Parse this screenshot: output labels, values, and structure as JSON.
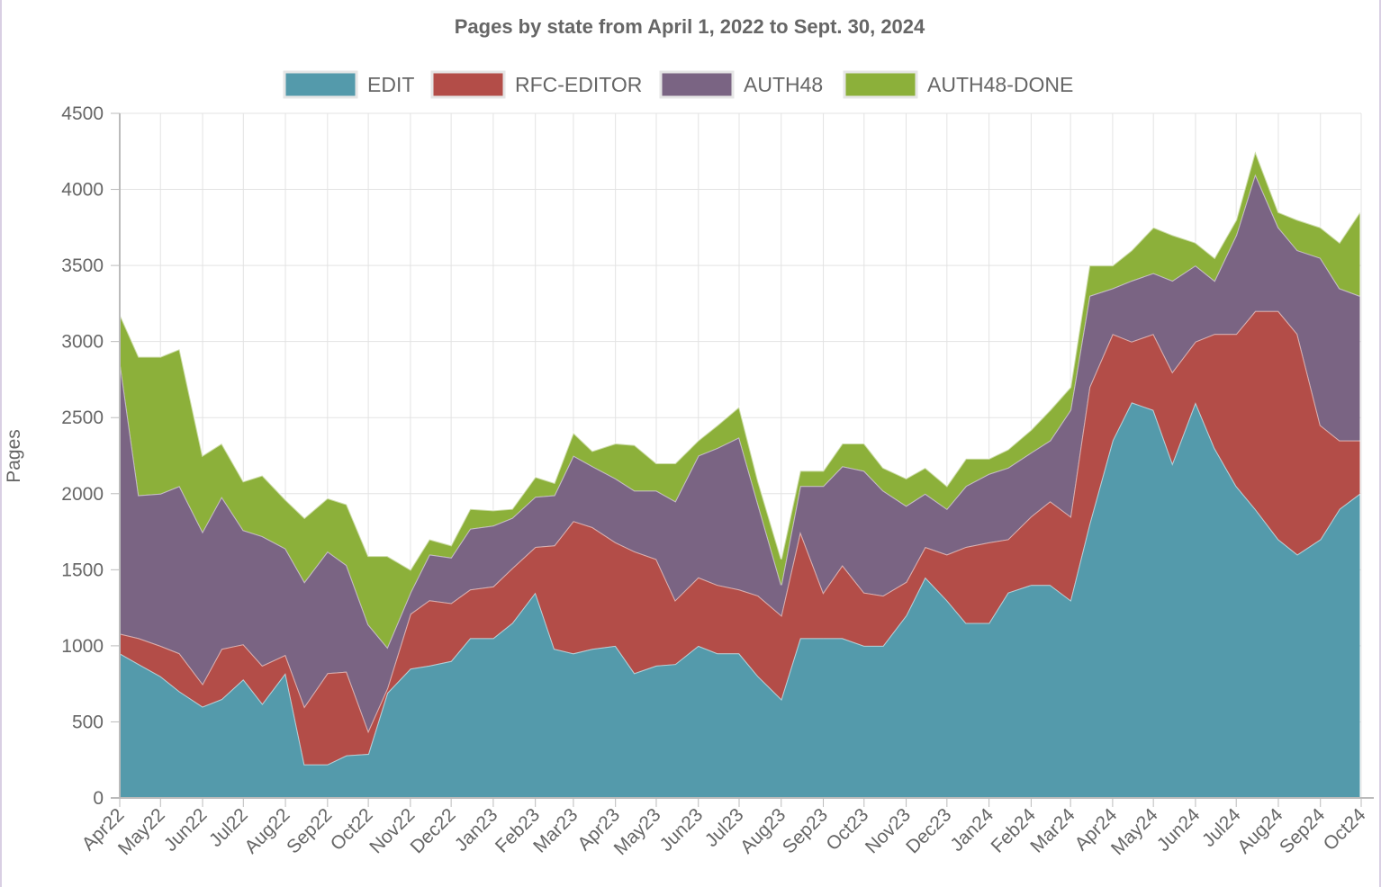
{
  "chart_data": {
    "type": "area",
    "stacked": true,
    "title": "Pages by state from April 1, 2022 to Sept. 30, 2024",
    "ylabel": "Pages",
    "xlabel": "",
    "ylim": [
      0,
      4500
    ],
    "yticks": [
      "0",
      "500",
      "1000",
      "1500",
      "2000",
      "2500",
      "3000",
      "3500",
      "4000",
      "4500"
    ],
    "yticks_values": [
      0,
      500,
      1000,
      1500,
      2000,
      2500,
      3000,
      3500,
      4000,
      4500
    ],
    "x_ticks": [
      "Apr22",
      "May22",
      "Jun22",
      "Jul22",
      "Aug22",
      "Sep22",
      "Oct22",
      "Nov22",
      "Dec22",
      "Jan23",
      "Feb23",
      "Mar23",
      "Apr23",
      "May23",
      "Jun23",
      "Jul23",
      "Aug23",
      "Sep23",
      "Oct23",
      "Nov23",
      "Dec23",
      "Jan24",
      "Feb24",
      "Mar24",
      "Apr24",
      "May24",
      "Jun24",
      "Jul24",
      "Aug24",
      "Sep24",
      "Oct24"
    ],
    "legend_position": "top",
    "grid": true,
    "colors": {
      "EDIT": "#549aab",
      "RFC-EDITOR": "#b34d48",
      "AUTH48": "#7a6483",
      "AUTH48-DONE": "#8cb03a"
    },
    "x": [
      "2022-04-01",
      "2022-04-15",
      "2022-05-01",
      "2022-05-15",
      "2022-06-01",
      "2022-06-15",
      "2022-07-01",
      "2022-07-15",
      "2022-08-01",
      "2022-08-15",
      "2022-09-01",
      "2022-09-15",
      "2022-10-01",
      "2022-10-15",
      "2022-11-01",
      "2022-11-15",
      "2022-12-01",
      "2022-12-15",
      "2023-01-01",
      "2023-01-15",
      "2023-02-01",
      "2023-02-15",
      "2023-03-01",
      "2023-03-15",
      "2023-04-01",
      "2023-04-15",
      "2023-05-01",
      "2023-05-15",
      "2023-06-01",
      "2023-06-15",
      "2023-07-01",
      "2023-07-15",
      "2023-08-01",
      "2023-08-15",
      "2023-09-01",
      "2023-09-15",
      "2023-10-01",
      "2023-10-15",
      "2023-11-01",
      "2023-11-15",
      "2023-12-01",
      "2023-12-15",
      "2024-01-01",
      "2024-01-15",
      "2024-02-01",
      "2024-02-15",
      "2024-03-01",
      "2024-03-15",
      "2024-04-01",
      "2024-04-15",
      "2024-05-01",
      "2024-05-15",
      "2024-06-01",
      "2024-06-15",
      "2024-07-01",
      "2024-07-15",
      "2024-08-01",
      "2024-08-15",
      "2024-09-01",
      "2024-09-15",
      "2024-09-30"
    ],
    "series": [
      {
        "name": "EDIT",
        "values": [
          950,
          880,
          800,
          700,
          600,
          650,
          780,
          620,
          820,
          220,
          220,
          280,
          290,
          690,
          850,
          870,
          900,
          1050,
          1050,
          1150,
          1350,
          980,
          950,
          980,
          1000,
          820,
          870,
          880,
          1000,
          950,
          950,
          800,
          650,
          1050,
          1050,
          1050,
          1000,
          1000,
          1200,
          1450,
          1300,
          1150,
          1150,
          1350,
          1400,
          1400,
          1300,
          1800,
          2350,
          2600,
          2550,
          2200,
          2600,
          2300,
          2050,
          1900,
          1700,
          1600,
          1700,
          1900,
          2000
        ]
      },
      {
        "name": "RFC-EDITOR",
        "values": [
          130,
          170,
          200,
          250,
          150,
          330,
          230,
          250,
          120,
          380,
          600,
          550,
          150,
          30,
          360,
          430,
          380,
          320,
          340,
          360,
          300,
          680,
          870,
          800,
          680,
          800,
          700,
          420,
          450,
          450,
          420,
          530,
          550,
          700,
          300,
          480,
          350,
          330,
          220,
          200,
          300,
          500,
          530,
          350,
          450,
          550,
          550,
          900,
          700,
          400,
          500,
          600,
          400,
          750,
          1000,
          1300,
          1500,
          1450,
          750,
          450,
          350
        ]
      },
      {
        "name": "AUTH48",
        "values": [
          1800,
          940,
          1000,
          1100,
          1000,
          1000,
          750,
          850,
          700,
          820,
          800,
          700,
          700,
          270,
          140,
          300,
          300,
          400,
          400,
          330,
          330,
          330,
          430,
          400,
          420,
          400,
          450,
          650,
          800,
          900,
          1000,
          600,
          200,
          300,
          700,
          650,
          800,
          690,
          500,
          350,
          300,
          400,
          450,
          470,
          420,
          400,
          700,
          600,
          300,
          400,
          400,
          600,
          500,
          350,
          650,
          900,
          550,
          550,
          1100,
          1000,
          950
        ]
      },
      {
        "name": "AUTH48-DONE",
        "values": [
          300,
          910,
          900,
          900,
          500,
          350,
          320,
          400,
          320,
          420,
          350,
          400,
          450,
          600,
          150,
          100,
          80,
          130,
          100,
          60,
          130,
          80,
          150,
          100,
          230,
          300,
          180,
          250,
          100,
          150,
          200,
          150,
          170,
          100,
          100,
          150,
          180,
          150,
          180,
          170,
          150,
          180,
          100,
          120,
          150,
          200,
          150,
          200,
          150,
          200,
          300,
          300,
          150,
          150,
          100,
          150,
          100,
          200,
          200,
          300,
          550
        ]
      }
    ]
  }
}
